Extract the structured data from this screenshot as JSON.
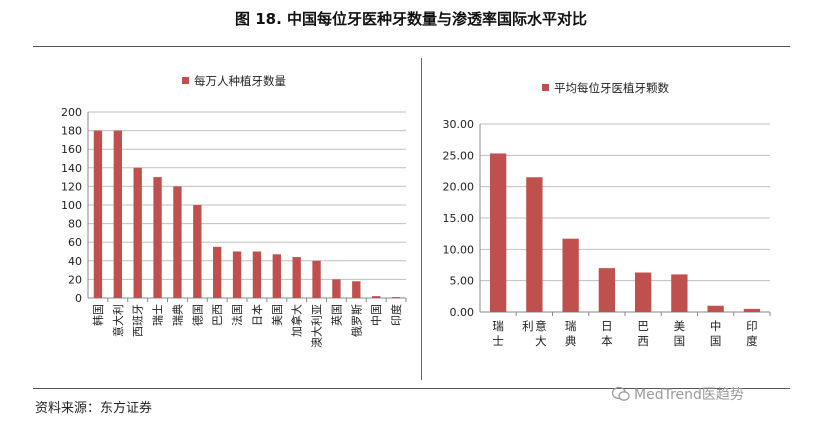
{
  "title": "图 18. 中国每位牙医种牙数量与渗透率国际水平对比",
  "source": "资料来源：东方证券",
  "watermark": "MedTrend医趋势",
  "colors": {
    "bar": "#c0504d",
    "grid": "#bfbfbf",
    "axis": "#888888"
  },
  "chart_data": [
    {
      "type": "bar",
      "title": "",
      "legend": "每万人种植牙数量",
      "legend_position": "top-left",
      "categories": [
        "韩国",
        "意大利",
        "西班牙",
        "瑞士",
        "瑞典",
        "德国",
        "巴西",
        "法国",
        "日本",
        "美国",
        "加拿大",
        "澳大利亚",
        "英国",
        "俄罗斯",
        "中国",
        "印度"
      ],
      "values": [
        180,
        180,
        140,
        130,
        120,
        100,
        55,
        50,
        50,
        47,
        44,
        40,
        20,
        18,
        2,
        1
      ],
      "ylim": [
        0,
        200
      ],
      "yticks": [
        "0",
        "20",
        "40",
        "60",
        "80",
        "100",
        "120",
        "140",
        "160",
        "180",
        "200"
      ],
      "grid": true,
      "xlabel": "",
      "ylabel": ""
    },
    {
      "type": "bar",
      "title": "",
      "legend": "平均每位牙医植牙颗数",
      "legend_position": "top-left",
      "categories": [
        "瑞士",
        "意大利",
        "瑞典",
        "日本",
        "巴西",
        "美国",
        "中国",
        "印度"
      ],
      "values": [
        25.3,
        21.5,
        11.7,
        7.0,
        6.3,
        6.0,
        1.0,
        0.5
      ],
      "ylim": [
        0,
        30
      ],
      "yticks": [
        "0.00",
        "5.00",
        "10.00",
        "15.00",
        "20.00",
        "25.00",
        "30.00"
      ],
      "grid": true,
      "xlabel": "",
      "ylabel": ""
    }
  ]
}
